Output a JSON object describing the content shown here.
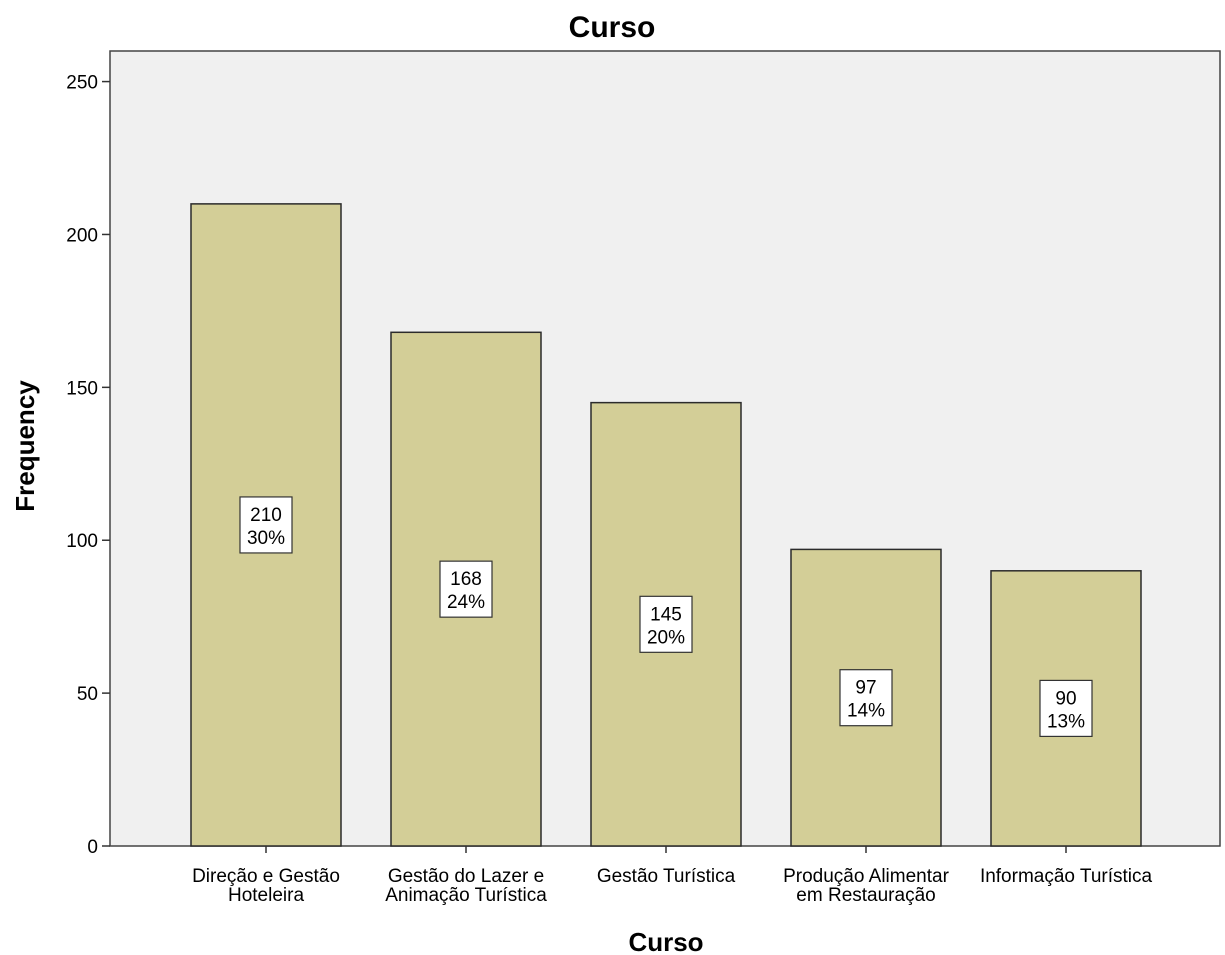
{
  "chart_data": {
    "type": "bar",
    "title": "Curso",
    "xlabel": "Curso",
    "ylabel": "Frequency",
    "categories": [
      [
        "Direção e Gestão",
        "Hoteleira"
      ],
      [
        "Gestão do Lazer e",
        "Animação Turística"
      ],
      [
        "Gestão Turística"
      ],
      [
        "Produção Alimentar",
        "em Restauração"
      ],
      [
        "Informação Turística"
      ]
    ],
    "values": [
      210,
      168,
      145,
      97,
      90
    ],
    "value_labels": [
      "210",
      "168",
      "145",
      "97",
      "90"
    ],
    "percent_labels": [
      "30%",
      "24%",
      "20%",
      "14%",
      "13%"
    ],
    "ylim": [
      0,
      260
    ],
    "yticks": [
      0,
      50,
      100,
      150,
      200,
      250
    ],
    "grid": false,
    "legend": "none",
    "colors": {
      "bar_fill": "#d3ce97",
      "bar_stroke": "#2b2b2b",
      "plot_background": "#f0f0f0",
      "label_box_fill": "#ffffff"
    }
  }
}
